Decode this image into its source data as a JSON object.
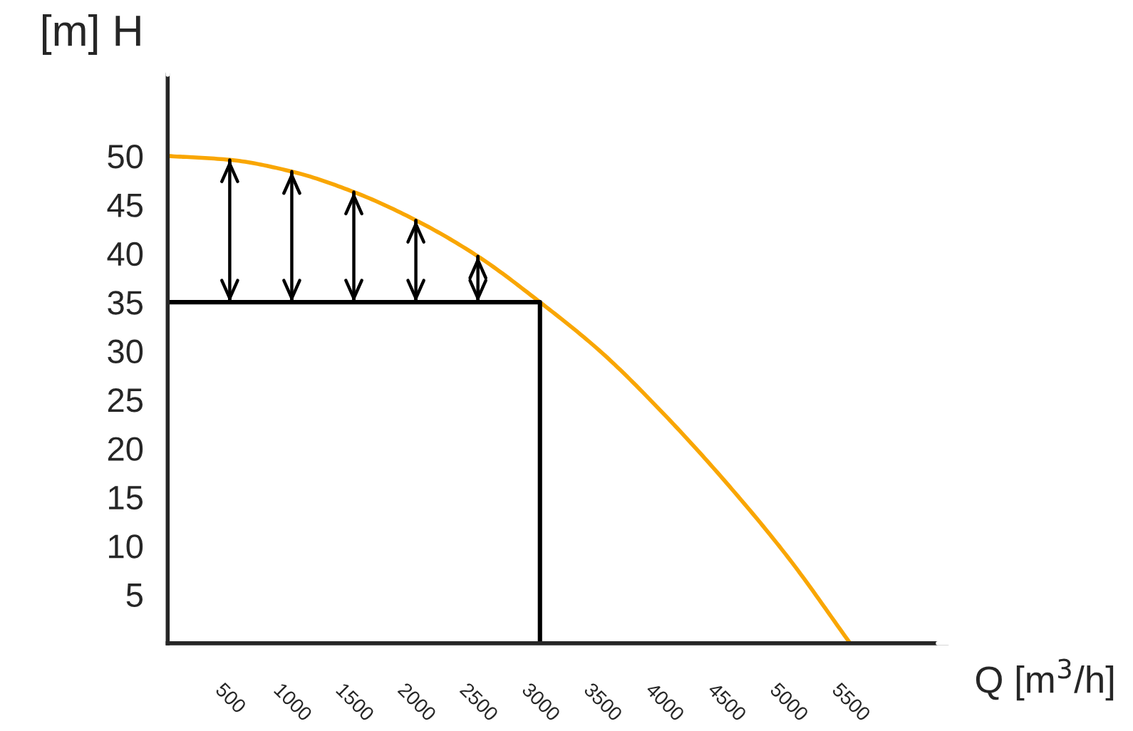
{
  "chart_data": {
    "type": "line",
    "xlabel": "Q [m$^{3}$/h]",
    "ylabel": "[m] H",
    "xlim": [
      0,
      6300
    ],
    "ylim": [
      0,
      58.5
    ],
    "xticks": [
      500,
      1000,
      1500,
      2000,
      2500,
      3000,
      3500,
      4000,
      4500,
      5000,
      5500
    ],
    "yticks": [
      5,
      10,
      15,
      20,
      25,
      30,
      35,
      40,
      45,
      50
    ],
    "grid": false,
    "legend": false,
    "marker": "none",
    "line_style": "solid",
    "series": [
      {
        "color": "#f9a602",
        "x": [
          0,
          500,
          1000,
          1500,
          2000,
          2500,
          3000,
          3500,
          4000,
          4500,
          5000,
          5500
        ],
        "values": [
          50,
          49.6,
          48.4,
          46.3,
          43.4,
          39.7,
          35,
          29.8,
          23.5,
          16.5,
          8.8,
          0
        ]
      },
      {
        "color": "#000000",
        "x": [
          0,
          3000,
          3000
        ],
        "values": [
          35,
          35,
          0
        ]
      },
      {
        "color": "#000000",
        "x": [
          500,
          500
        ],
        "values": [
          35,
          49.6
        ]
      },
      {
        "color": "#000000",
        "x": [
          1000,
          1000
        ],
        "values": [
          35,
          48.4
        ]
      },
      {
        "color": "#000000",
        "x": [
          1500,
          1500
        ],
        "values": [
          35,
          46.3
        ]
      },
      {
        "color": "#000000",
        "x": [
          2000,
          2000
        ],
        "values": [
          35,
          43.4
        ]
      },
      {
        "color": "#000000",
        "x": [
          2500,
          2500
        ],
        "values": [
          35,
          39.7
        ]
      }
    ]
  }
}
